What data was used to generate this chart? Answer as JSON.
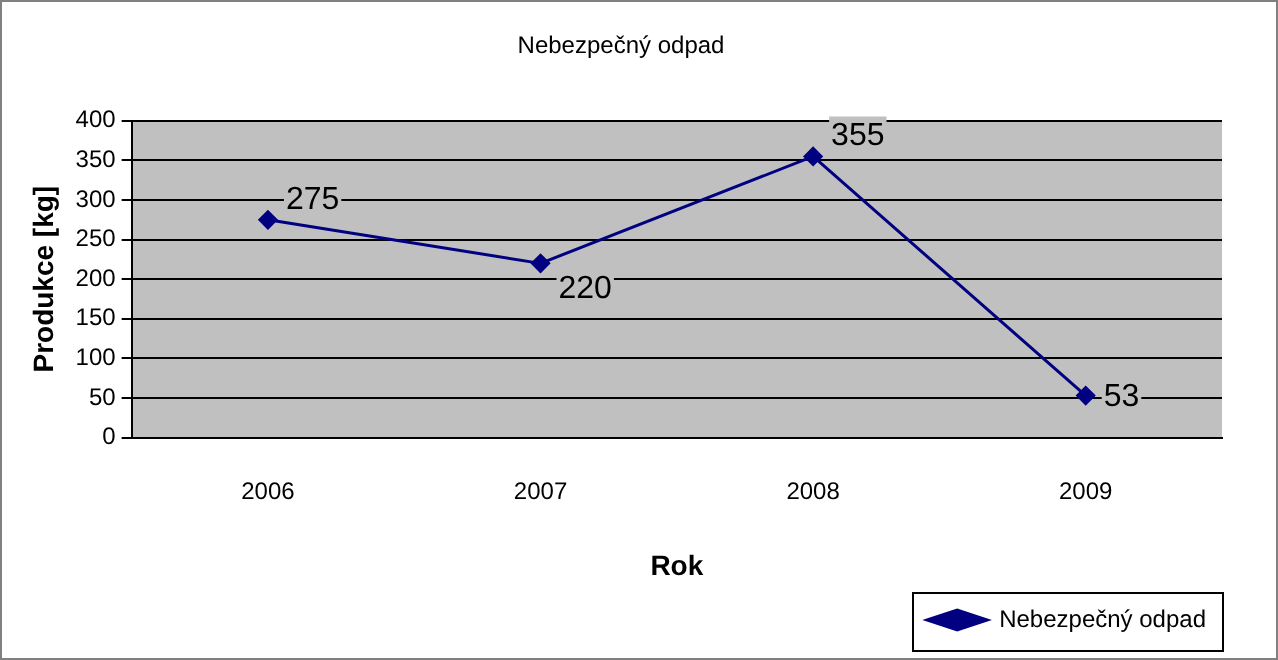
{
  "chart_data": {
    "type": "line",
    "title": "Nebezpečný odpad",
    "xlabel": "Rok",
    "ylabel": "Produkce [kg]",
    "categories": [
      "2006",
      "2007",
      "2008",
      "2009"
    ],
    "series": [
      {
        "name": "Nebezpečný odpad",
        "color": "#000080",
        "values": [
          275,
          220,
          355,
          53
        ]
      }
    ],
    "ylim": [
      0,
      400
    ],
    "yticks": [
      0,
      50,
      100,
      150,
      200,
      250,
      300,
      350,
      400
    ],
    "grid": "y",
    "legend": "bottom right",
    "marker": "diamond",
    "line_style": "solid",
    "data_labels": true
  }
}
